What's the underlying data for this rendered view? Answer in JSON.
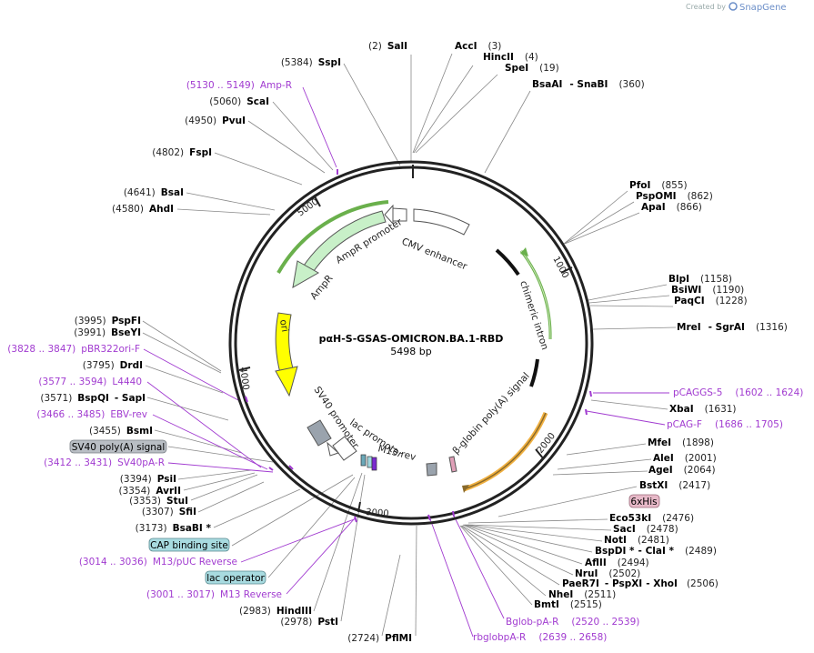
{
  "watermark": {
    "prefix": "Created by",
    "brand": "SnapGene"
  },
  "plasmid": {
    "name": "pαH-S-GSAS-OMICRON.BA.1-RBD",
    "size": "5498 bp"
  },
  "ticks": [
    "1000",
    "2000",
    "3000",
    "4000",
    "5000"
  ],
  "features": {
    "cmv": "CMV enhancer",
    "ampr_promoter": "AmpR promoter",
    "ampr": "AmpR",
    "ori": "ori",
    "sv40": "SV40 promoter",
    "lac": "lac promoter",
    "m13rev": "M13 rev",
    "chimeric": "chimeric intron",
    "bglobin": "β-globin poly(A) signal"
  },
  "sites_right": [
    {
      "pos": "(2)",
      "name": "SalI"
    },
    {
      "name": "AccI",
      "pos": "(3)"
    },
    {
      "name": "HincII",
      "pos": "(4)"
    },
    {
      "name": "SpeI",
      "pos": "(19)"
    },
    {
      "name": "BsaAI",
      "name2": "SnaBI",
      "pos": "(360)"
    },
    {
      "name": "PfoI",
      "pos": "(855)"
    },
    {
      "name": "PspOMI",
      "pos": "(862)"
    },
    {
      "name": "ApaI",
      "pos": "(866)"
    },
    {
      "name": "BlpI",
      "pos": "(1158)"
    },
    {
      "name": "BsiWI",
      "pos": "(1190)"
    },
    {
      "name": "PaqCI",
      "pos": "(1228)"
    },
    {
      "name": "MreI",
      "name2": "SgrAI",
      "pos": "(1316)"
    },
    {
      "name": "XbaI",
      "pos": "(1631)"
    },
    {
      "name": "MfeI",
      "pos": "(1898)"
    },
    {
      "name": "AleI",
      "pos": "(2001)"
    },
    {
      "name": "AgeI",
      "pos": "(2064)"
    },
    {
      "name": "BstXI",
      "pos": "(2417)"
    },
    {
      "name": "Eco53kI",
      "pos": "(2476)"
    },
    {
      "name": "SacI",
      "pos": "(2478)"
    },
    {
      "name": "NotI",
      "pos": "(2481)"
    },
    {
      "name": "BspDI *",
      "name2": "ClaI *",
      "pos": "(2489)"
    },
    {
      "name": "AflII",
      "pos": "(2494)"
    },
    {
      "name": "NruI",
      "pos": "(2502)"
    },
    {
      "name": "PaeR7I",
      "name2": "PspXI",
      "name3": "XhoI",
      "pos": "(2506)"
    },
    {
      "name": "NheI",
      "pos": "(2511)"
    },
    {
      "name": "BmtI",
      "pos": "(2515)"
    }
  ],
  "primers_right": [
    {
      "name": "pCAGGS-5",
      "pos": "(1602 .. 1624)"
    },
    {
      "name": "pCAG-F",
      "pos": "(1686 .. 1705)"
    },
    {
      "name": "Bglob-pA-R",
      "pos": "(2520 .. 2539)"
    },
    {
      "name": "rbglobpA-R",
      "pos": "(2639 .. 2658)"
    }
  ],
  "badges": {
    "his": "6xHis",
    "sv40pa": "SV40 poly(A) signal",
    "cap": "CAP binding site",
    "lacop": "lac operator"
  },
  "sites_left": [
    {
      "pos": "(5384)",
      "name": "SspI"
    },
    {
      "pos": "(5060)",
      "name": "ScaI"
    },
    {
      "pos": "(4950)",
      "name": "PvuI"
    },
    {
      "pos": "(4802)",
      "name": "FspI"
    },
    {
      "pos": "(4641)",
      "name": "BsaI"
    },
    {
      "pos": "(4580)",
      "name": "AhdI"
    },
    {
      "pos": "(3995)",
      "name": "PspFI"
    },
    {
      "pos": "(3991)",
      "name": "BseYI"
    },
    {
      "pos": "(3795)",
      "name": "DrdI"
    },
    {
      "pos": "(3571)",
      "name": "BspQI",
      "name2": "SapI"
    },
    {
      "pos": "(3455)",
      "name": "BsmI"
    },
    {
      "pos": "(3394)",
      "name": "PsiI"
    },
    {
      "pos": "(3354)",
      "name": "AvrII"
    },
    {
      "pos": "(3353)",
      "name": "StuI"
    },
    {
      "pos": "(3307)",
      "name": "SfiI"
    },
    {
      "pos": "(3173)",
      "name": "BsaBI *"
    },
    {
      "pos": "(2983)",
      "name": "HindIII"
    },
    {
      "pos": "(2978)",
      "name": "PstI"
    },
    {
      "pos": "(2724)",
      "name": "PflMI"
    }
  ],
  "primers_left": [
    {
      "pos": "(5130 .. 5149)",
      "name": "Amp-R"
    },
    {
      "pos": "(3828 .. 3847)",
      "name": "pBR322ori-F"
    },
    {
      "pos": "(3577 .. 3594)",
      "name": "L4440"
    },
    {
      "pos": "(3466 .. 3485)",
      "name": "EBV-rev"
    },
    {
      "pos": "(3412 .. 3431)",
      "name": "SV40pA-R"
    },
    {
      "pos": "(3014 .. 3036)",
      "name": "M13/pUC Reverse"
    },
    {
      "pos": "(3001 .. 3017)",
      "name": "M13 Reverse"
    }
  ]
}
